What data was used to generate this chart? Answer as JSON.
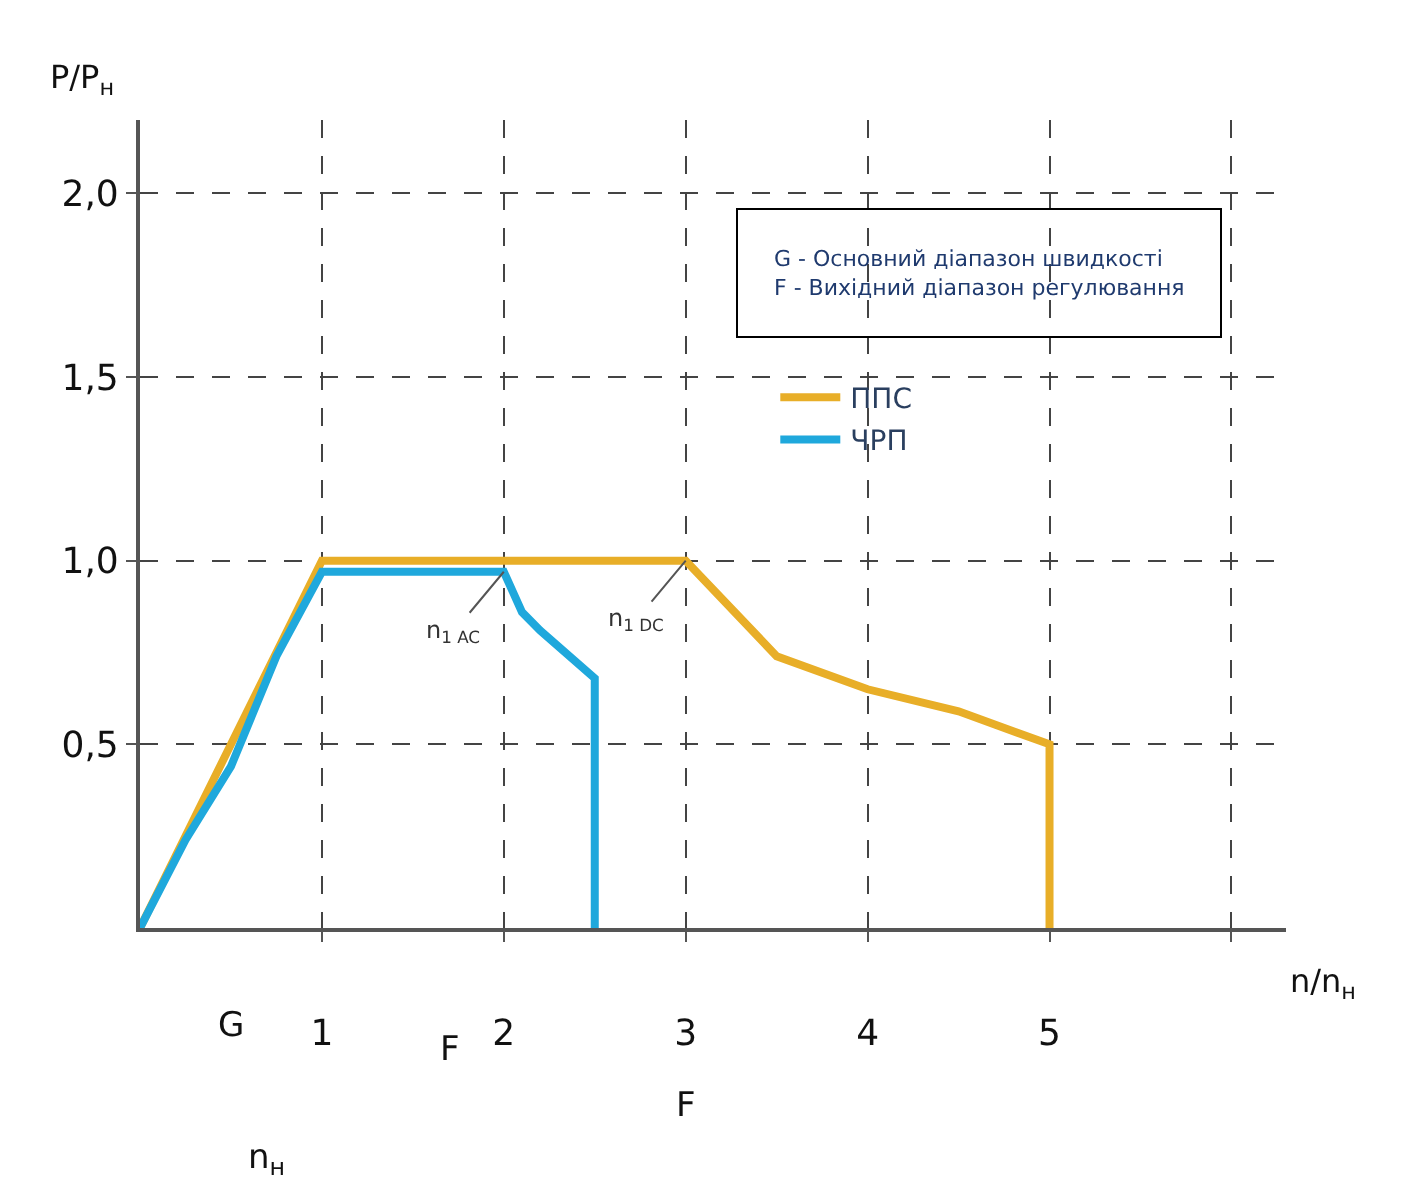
{
  "chart_data": {
    "type": "line",
    "xlabel": "n/n$_{н}$",
    "ylabel": "P/P$_{н}$",
    "series": [
      {
        "name": "ППС",
        "color": "#e8ae28",
        "x": [
          0,
          1,
          3,
          3.5,
          4,
          4.5,
          5,
          5
        ],
        "values": [
          0,
          1,
          1,
          0.74,
          0.65,
          0.59,
          0.5,
          0
        ]
      },
      {
        "name": "ЧРП",
        "color": "#1fa8dc",
        "x": [
          0,
          0.25,
          0.5,
          0.75,
          1,
          2,
          2.1,
          2.2,
          2.5,
          2.5
        ],
        "values": [
          0,
          0.24,
          0.44,
          0.74,
          0.97,
          0.97,
          0.86,
          0.81,
          0.68,
          0
        ]
      }
    ],
    "xlim": [
      0,
      6.3
    ],
    "ylim": [
      0,
      2.2
    ],
    "xticks": [
      1,
      2,
      3,
      4,
      5,
      {
        "value": 6,
        "label": null
      }
    ],
    "yticks": [
      {
        "value": 0.5,
        "label": "0,5"
      },
      {
        "value": 1.0,
        "label": "1,0"
      },
      {
        "value": 1.5,
        "label": "1,5"
      },
      {
        "value": 2.0,
        "label": "2,0"
      }
    ],
    "grid": true,
    "legend": "right",
    "marker": "none",
    "line_style": "solid",
    "annotations": [
      {
        "text": "n$_{1 AC}$",
        "x": 2,
        "y": 0.97
      },
      {
        "text": "n$_{1 DC}$",
        "x": 3,
        "y": 1
      },
      "G - Основний діапазон швидкості\nF - Вихідний діапазон регулювання",
      "G",
      "F",
      "F",
      "n$_{н}$"
    ]
  }
}
